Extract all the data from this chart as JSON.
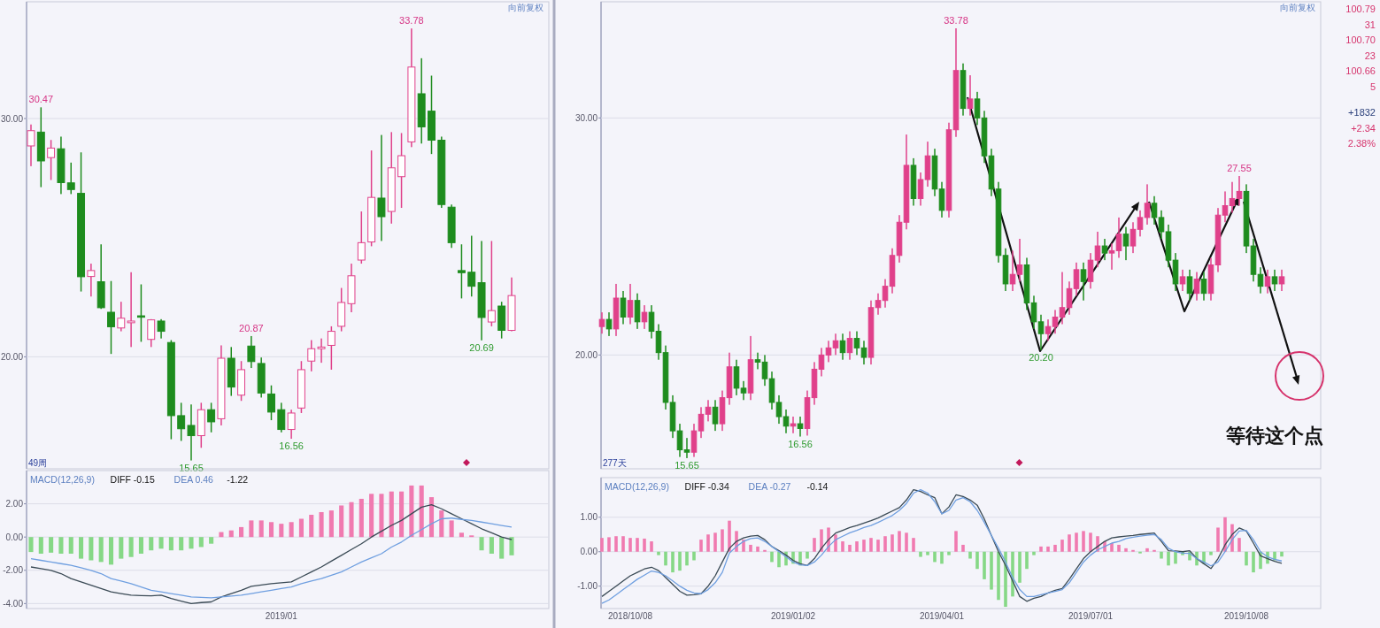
{
  "chart_data": [
    {
      "type": "candlestick",
      "ohlc": [
        [
          28.85,
          29.75,
          28.0,
          29.49
        ],
        [
          29.43,
          30.47,
          27.12,
          28.22
        ],
        [
          28.36,
          29.1,
          27.42,
          28.76
        ],
        [
          28.73,
          29.24,
          26.83,
          27.31
        ],
        [
          27.3,
          28.15,
          26.83,
          27.02
        ],
        [
          26.86,
          28.58,
          22.74,
          23.36
        ],
        [
          23.37,
          23.91,
          22.53,
          23.62
        ],
        [
          23.15,
          24.72,
          22.01,
          22.06
        ],
        [
          21.87,
          23.18,
          20.12,
          21.26
        ],
        [
          21.21,
          22.31,
          21.07,
          21.62
        ],
        [
          21.43,
          23.55,
          20.41,
          21.5
        ],
        [
          21.72,
          23.04,
          20.63,
          21.66
        ],
        [
          20.73,
          21.58,
          20.41,
          21.55
        ],
        [
          21.5,
          21.58,
          20.77,
          21.07
        ],
        [
          20.6,
          20.7,
          16.54,
          17.53
        ],
        [
          17.53,
          18.07,
          16.47,
          16.98
        ],
        [
          17.12,
          18.0,
          15.65,
          16.69
        ],
        [
          16.69,
          18.07,
          16.18,
          17.78
        ],
        [
          17.78,
          18.07,
          16.83,
          17.27
        ],
        [
          17.4,
          20.48,
          17.12,
          19.94
        ],
        [
          19.94,
          20.41,
          18.36,
          18.73
        ],
        [
          18.39,
          19.82,
          18.15,
          19.46
        ],
        [
          20.45,
          20.87,
          19.53,
          19.8
        ],
        [
          19.72,
          19.97,
          18.29,
          18.48
        ],
        [
          18.44,
          18.8,
          17.34,
          17.68
        ],
        [
          17.78,
          18.07,
          16.83,
          16.95
        ],
        [
          16.95,
          17.78,
          16.56,
          17.64
        ],
        [
          17.85,
          19.82,
          17.64,
          19.46
        ],
        [
          19.82,
          20.7,
          19.39,
          20.34
        ],
        [
          20.34,
          20.77,
          19.75,
          20.41
        ],
        [
          20.48,
          21.28,
          19.46,
          21.07
        ],
        [
          21.28,
          22.89,
          21.07,
          22.28
        ],
        [
          22.23,
          23.91,
          21.87,
          23.4
        ],
        [
          24.06,
          26.1,
          23.91,
          24.79
        ],
        [
          24.82,
          28.66,
          24.64,
          26.69
        ],
        [
          26.66,
          29.31,
          24.86,
          25.88
        ],
        [
          26.1,
          29.43,
          25.59,
          27.93
        ],
        [
          27.56,
          29.39,
          26.25,
          28.44
        ],
        [
          29.02,
          33.78,
          28.8,
          32.16
        ],
        [
          31.04,
          32.53,
          28.95,
          29.65
        ],
        [
          30.31,
          31.8,
          28.51,
          29.09
        ],
        [
          29.09,
          29.24,
          26.25,
          26.39
        ],
        [
          26.28,
          26.39,
          24.57,
          24.79
        ],
        [
          23.62,
          24.72,
          22.45,
          23.53
        ],
        [
          23.55,
          25.08,
          22.53,
          22.96
        ],
        [
          23.11,
          24.86,
          20.69,
          21.65
        ],
        [
          21.46,
          24.86,
          21.28,
          21.94
        ],
        [
          22.13,
          22.31,
          20.77,
          21.11
        ],
        [
          21.11,
          23.33,
          21.07,
          22.57
        ]
      ],
      "ylim": [
        15.3,
        34.9
      ],
      "yticks": [
        {
          "value": 20,
          "label": "20.00"
        },
        {
          "value": 30,
          "label": "30.00"
        }
      ],
      "grid": "y",
      "tick_labels": "y",
      "annotations": [
        "向前复权",
        "49周",
        {
          "text": "30.47",
          "y": 30.47
        },
        {
          "text": "33.78",
          "y": 33.78
        },
        {
          "text": "20.87",
          "y": 20.87
        },
        {
          "text": "15.65",
          "y": 15.65
        },
        {
          "text": "16.56",
          "y": 16.56
        },
        {
          "text": "20.69",
          "y": 20.69
        }
      ]
    },
    {
      "type": "bar",
      "categories": [
        null,
        null,
        null,
        null,
        null,
        null,
        null,
        null,
        null,
        null,
        null,
        null,
        null,
        null,
        null,
        null,
        null,
        null,
        null,
        null,
        null,
        null,
        null,
        null,
        null,
        "2019/01",
        null,
        null,
        null,
        null,
        null,
        null,
        null,
        null,
        null,
        null,
        null,
        null,
        null,
        null,
        null,
        null,
        null,
        null,
        null,
        null,
        null,
        null,
        null
      ],
      "series": [
        {
          "type": "bar",
          "colors": [
            "#86d886",
            "#86d886",
            "#86d886",
            "#86d886",
            "#86d886",
            "#86d886",
            "#86d886",
            "#86d886",
            "#86d886",
            "#86d886",
            "#86d886",
            "#86d886",
            "#86d886",
            "#86d886",
            "#86d886",
            "#86d886",
            "#86d886",
            "#86d886",
            "#86d886",
            "#f07ab0",
            "#f07ab0",
            "#f07ab0",
            "#f07ab0",
            "#f07ab0",
            "#f07ab0",
            "#f07ab0",
            "#f07ab0",
            "#f07ab0",
            "#f07ab0",
            "#f07ab0",
            "#f07ab0",
            "#f07ab0",
            "#f07ab0",
            "#f07ab0",
            "#f07ab0",
            "#f07ab0",
            "#f07ab0",
            "#f07ab0",
            "#f07ab0",
            "#f07ab0",
            "#f07ab0",
            "#f07ab0",
            "#f07ab0",
            "#f07ab0",
            "#f07ab0",
            "#86d886",
            "#86d886",
            "#86d886",
            "#86d886"
          ],
          "values": [
            -0.9,
            -1.0,
            -0.94,
            -1.0,
            -1.0,
            -1.3,
            -1.4,
            -1.5,
            -1.66,
            -1.3,
            -1.2,
            -1.0,
            -0.8,
            -0.7,
            -0.8,
            -0.8,
            -0.7,
            -0.6,
            -0.4,
            0.3,
            0.4,
            0.6,
            1.0,
            1.0,
            0.9,
            0.8,
            0.9,
            1.1,
            1.34,
            1.5,
            1.6,
            1.9,
            2.1,
            2.3,
            2.6,
            2.6,
            2.74,
            2.74,
            3.1,
            3.1,
            2.4,
            1.6,
            1.0,
            0.26,
            0.1,
            -0.8,
            -1.0,
            -1.3,
            -1.1
          ]
        },
        {
          "type": "line",
          "color": "#3a4a55",
          "values": [
            -1.8,
            -1.9,
            -2.0,
            -2.2,
            -2.5,
            -2.7,
            -2.9,
            -3.1,
            -3.3,
            -3.4,
            -3.5,
            -3.52,
            -3.54,
            -3.5,
            -3.7,
            -3.85,
            -4.0,
            -3.94,
            -3.9,
            -3.6,
            -3.4,
            -3.2,
            -2.96,
            -2.88,
            -2.8,
            -2.75,
            -2.7,
            -2.4,
            -2.1,
            -1.8,
            -1.45,
            -1.1,
            -0.75,
            -0.4,
            0,
            0.35,
            0.7,
            1.0,
            1.4,
            1.8,
            1.94,
            1.7,
            1.4,
            1.1,
            0.8,
            0.5,
            0.26,
            0,
            -0.15
          ]
        },
        {
          "type": "line",
          "color": "#6f9fe0",
          "values": [
            -1.3,
            -1.4,
            -1.5,
            -1.6,
            -1.7,
            -1.85,
            -2.0,
            -2.2,
            -2.5,
            -2.65,
            -2.8,
            -3.0,
            -3.2,
            -3.3,
            -3.4,
            -3.5,
            -3.6,
            -3.63,
            -3.66,
            -3.6,
            -3.55,
            -3.5,
            -3.4,
            -3.3,
            -3.2,
            -3.1,
            -3.0,
            -2.8,
            -2.65,
            -2.5,
            -2.3,
            -2.1,
            -1.8,
            -1.5,
            -1.25,
            -1.0,
            -0.6,
            -0.3,
            0.1,
            0.45,
            0.8,
            1.1,
            1.14,
            1.06,
            1.0,
            0.9,
            0.8,
            0.7,
            0.6
          ]
        }
      ],
      "ylim": [
        -4.3,
        4.0
      ],
      "yticks": [
        {
          "value": -4,
          "label": "-4.00"
        },
        {
          "value": -2,
          "label": "-2.00"
        },
        {
          "value": 0,
          "label": "0.00"
        },
        {
          "value": 2,
          "label": "2.00"
        }
      ],
      "grid": "y",
      "annotations": [
        "MACD(12,26,9)",
        "DIFF -0.15",
        "DEA 0.46",
        "-1.22"
      ]
    },
    {
      "type": "candlestick",
      "ohlc": [
        [
          21.2,
          21.8,
          20.9,
          21.5
        ],
        [
          21.5,
          21.8,
          20.8,
          21.1
        ],
        [
          21.1,
          23.0,
          20.8,
          22.4
        ],
        [
          22.4,
          22.7,
          21.3,
          21.6
        ],
        [
          21.6,
          23.0,
          21.3,
          22.3
        ],
        [
          22.3,
          22.6,
          21.1,
          21.4
        ],
        [
          21.4,
          22.1,
          21.1,
          21.8
        ],
        [
          21.8,
          22.1,
          20.7,
          21.0
        ],
        [
          21.0,
          21.3,
          19.8,
          20.1
        ],
        [
          20.1,
          20.4,
          17.7,
          18.0
        ],
        [
          18.0,
          18.3,
          16.5,
          16.8
        ],
        [
          16.8,
          17.1,
          15.7,
          16.0
        ],
        [
          16.0,
          16.5,
          15.65,
          15.9
        ],
        [
          15.9,
          17.1,
          15.7,
          16.8
        ],
        [
          16.8,
          17.8,
          16.5,
          17.5
        ],
        [
          17.5,
          18.1,
          17.2,
          17.8
        ],
        [
          17.8,
          18.1,
          16.8,
          17.1
        ],
        [
          17.1,
          18.5,
          16.8,
          18.2
        ],
        [
          18.2,
          20.1,
          17.9,
          19.5
        ],
        [
          19.5,
          19.8,
          18.3,
          18.6
        ],
        [
          18.6,
          18.9,
          18.1,
          18.4
        ],
        [
          18.4,
          20.8,
          18.1,
          19.8
        ],
        [
          19.8,
          20.1,
          19.4,
          19.7
        ],
        [
          19.7,
          20.0,
          18.7,
          19.0
        ],
        [
          19.0,
          19.3,
          17.7,
          18.0
        ],
        [
          18.0,
          18.3,
          17.1,
          17.4
        ],
        [
          17.4,
          17.7,
          16.7,
          17.0
        ],
        [
          17.0,
          17.4,
          16.7,
          17.1
        ],
        [
          17.1,
          17.4,
          16.56,
          16.9
        ],
        [
          16.9,
          18.5,
          16.6,
          18.2
        ],
        [
          18.2,
          19.7,
          17.9,
          19.4
        ],
        [
          19.4,
          20.3,
          19.1,
          20.0
        ],
        [
          20.0,
          20.6,
          19.7,
          20.3
        ],
        [
          20.3,
          20.9,
          20.0,
          20.6
        ],
        [
          20.6,
          20.9,
          19.8,
          20.1
        ],
        [
          20.1,
          21.0,
          19.8,
          20.7
        ],
        [
          20.7,
          21.0,
          20.0,
          20.3
        ],
        [
          20.3,
          20.6,
          19.6,
          19.9
        ],
        [
          19.9,
          22.3,
          19.6,
          22.0
        ],
        [
          22.0,
          22.6,
          21.7,
          22.3
        ],
        [
          22.3,
          23.2,
          22.0,
          22.9
        ],
        [
          22.9,
          24.5,
          22.6,
          24.2
        ],
        [
          24.2,
          25.9,
          23.9,
          25.6
        ],
        [
          25.6,
          29.3,
          25.3,
          28.0
        ],
        [
          28.0,
          28.3,
          26.3,
          26.6
        ],
        [
          26.6,
          27.7,
          26.3,
          27.4
        ],
        [
          27.4,
          29.0,
          27.1,
          28.4
        ],
        [
          28.4,
          28.7,
          26.7,
          27.0
        ],
        [
          27.0,
          27.3,
          25.8,
          26.1
        ],
        [
          26.1,
          29.8,
          25.8,
          29.5
        ],
        [
          29.5,
          33.78,
          29.2,
          32.0
        ],
        [
          32.0,
          32.3,
          30.1,
          30.4
        ],
        [
          30.4,
          31.8,
          30.1,
          30.8
        ],
        [
          30.8,
          31.1,
          29.7,
          30.0
        ],
        [
          30.0,
          30.3,
          28.1,
          28.4
        ],
        [
          28.4,
          28.7,
          26.7,
          27.0
        ],
        [
          27.0,
          27.3,
          23.9,
          24.2
        ],
        [
          24.2,
          24.5,
          22.7,
          23.0
        ],
        [
          23.0,
          24.4,
          22.7,
          23.4
        ],
        [
          23.4,
          24.9,
          23.1,
          23.8
        ],
        [
          23.8,
          24.1,
          21.9,
          22.2
        ],
        [
          22.2,
          22.5,
          21.1,
          21.4
        ],
        [
          21.4,
          21.7,
          20.2,
          20.9
        ],
        [
          20.9,
          21.5,
          20.6,
          21.2
        ],
        [
          21.2,
          21.9,
          20.9,
          21.6
        ],
        [
          21.6,
          23.5,
          21.3,
          22.0
        ],
        [
          22.0,
          23.1,
          21.7,
          22.8
        ],
        [
          22.8,
          23.9,
          22.5,
          23.6
        ],
        [
          23.6,
          23.9,
          22.3,
          23.1
        ],
        [
          23.1,
          24.3,
          22.8,
          24.0
        ],
        [
          24.0,
          25.2,
          23.7,
          24.6
        ],
        [
          24.6,
          24.9,
          24.0,
          24.3
        ],
        [
          24.3,
          24.7,
          23.6,
          24.4
        ],
        [
          24.4,
          25.8,
          24.1,
          25.1
        ],
        [
          25.1,
          25.4,
          24.0,
          24.6
        ],
        [
          24.6,
          25.6,
          24.3,
          25.3
        ],
        [
          25.3,
          26.1,
          25.0,
          25.8
        ],
        [
          25.8,
          27.2,
          25.5,
          26.4
        ],
        [
          26.4,
          26.7,
          25.5,
          25.8
        ],
        [
          25.8,
          26.1,
          24.9,
          25.2
        ],
        [
          25.2,
          25.5,
          23.7,
          24.0
        ],
        [
          24.0,
          24.3,
          22.7,
          23.0
        ],
        [
          23.0,
          23.6,
          22.7,
          23.3
        ],
        [
          23.3,
          23.6,
          22.3,
          22.6
        ],
        [
          22.6,
          23.5,
          22.3,
          23.2
        ],
        [
          23.2,
          23.5,
          22.3,
          22.6
        ],
        [
          22.6,
          24.1,
          22.3,
          23.8
        ],
        [
          23.8,
          26.2,
          23.5,
          25.9
        ],
        [
          25.9,
          26.9,
          25.6,
          26.3
        ],
        [
          26.3,
          27.3,
          26.0,
          26.6
        ],
        [
          26.6,
          27.55,
          26.3,
          26.9
        ],
        [
          26.9,
          27.2,
          24.3,
          24.6
        ],
        [
          24.6,
          24.9,
          23.1,
          23.4
        ],
        [
          23.4,
          23.7,
          22.6,
          22.9
        ],
        [
          22.9,
          23.6,
          22.6,
          23.3
        ],
        [
          23.3,
          23.6,
          22.7,
          23.0
        ],
        [
          23.0,
          23.6,
          22.7,
          23.3
        ]
      ],
      "ylim": [
        15.2,
        34.9
      ],
      "yticks": [
        {
          "value": 20,
          "label": "20.00"
        },
        {
          "value": 30,
          "label": "30.00"
        }
      ],
      "grid": "y",
      "tick_labels": "y",
      "annotations": [
        "向前复权",
        "277天",
        "等待这个点",
        "100.79",
        "31",
        "100.70",
        "23",
        "100.66",
        "5",
        "+1832",
        "+2.34",
        "2.38%",
        {
          "text": "33.78",
          "y": 33.78
        },
        {
          "text": "15.65",
          "y": 15.65
        },
        {
          "text": "16.56",
          "y": 16.56
        },
        {
          "text": "20.20",
          "y": 20.2
        },
        {
          "text": "27.55",
          "y": 27.55
        }
      ]
    },
    {
      "type": "bar",
      "categories": [
        null,
        null,
        null,
        null,
        "2018/10/08",
        null,
        null,
        null,
        null,
        null,
        null,
        null,
        null,
        null,
        null,
        null,
        null,
        null,
        null,
        null,
        null,
        null,
        null,
        null,
        null,
        null,
        null,
        "2019/01/02",
        null,
        null,
        null,
        null,
        null,
        null,
        null,
        null,
        null,
        null,
        null,
        null,
        null,
        null,
        null,
        null,
        null,
        null,
        null,
        null,
        "2019/04/01",
        null,
        null,
        null,
        null,
        null,
        null,
        null,
        null,
        null,
        null,
        null,
        null,
        null,
        null,
        null,
        null,
        null,
        null,
        null,
        null,
        "2019/07/01",
        null,
        null,
        null,
        null,
        null,
        null,
        null,
        null,
        null,
        null,
        null,
        null,
        null,
        null,
        null,
        null,
        null,
        null,
        null,
        null,
        null,
        "2019/10/08",
        null,
        null,
        null,
        null,
        null
      ],
      "series": [
        {
          "type": "bar",
          "colors": [
            "#f07ab0",
            "#f07ab0",
            "#f07ab0",
            "#f07ab0",
            "#f07ab0",
            "#f07ab0",
            "#f07ab0",
            "#f07ab0",
            "#86d886",
            "#86d886",
            "#86d886",
            "#86d886",
            "#86d886",
            "#86d886",
            "#f07ab0",
            "#f07ab0",
            "#f07ab0",
            "#f07ab0",
            "#f07ab0",
            "#f07ab0",
            "#f07ab0",
            "#f07ab0",
            "#f07ab0",
            "#f07ab0",
            "#86d886",
            "#86d886",
            "#86d886",
            "#86d886",
            "#86d886",
            "#86d886",
            "#f07ab0",
            "#f07ab0",
            "#f07ab0",
            "#f07ab0",
            "#f07ab0",
            "#f07ab0",
            "#f07ab0",
            "#f07ab0",
            "#f07ab0",
            "#f07ab0",
            "#f07ab0",
            "#f07ab0",
            "#f07ab0",
            "#f07ab0",
            "#f07ab0",
            "#86d886",
            "#86d886",
            "#86d886",
            "#86d886",
            "#86d886",
            "#f07ab0",
            "#f07ab0",
            "#86d886",
            "#86d886",
            "#86d886",
            "#86d886",
            "#86d886",
            "#86d886",
            "#86d886",
            "#86d886",
            "#86d886",
            "#86d886",
            "#f07ab0",
            "#f07ab0",
            "#f07ab0",
            "#f07ab0",
            "#f07ab0",
            "#f07ab0",
            "#f07ab0",
            "#f07ab0",
            "#f07ab0",
            "#f07ab0",
            "#f07ab0",
            "#f07ab0",
            "#f07ab0",
            "#f07ab0",
            "#86d886",
            "#f07ab0",
            "#f07ab0",
            "#86d886",
            "#86d886",
            "#86d886",
            "#86d886",
            "#86d886",
            "#86d886",
            "#86d886",
            "#86d886",
            "#f07ab0",
            "#f07ab0",
            "#f07ab0",
            "#f07ab0",
            "#86d886",
            "#86d886",
            "#86d886",
            "#86d886",
            "#86d886",
            "#86d886"
          ],
          "values": [
            0.4,
            0.42,
            0.45,
            0.45,
            0.4,
            0.4,
            0.38,
            0.3,
            -0.1,
            -0.4,
            -0.6,
            -0.55,
            -0.4,
            -0.25,
            0.35,
            0.5,
            0.55,
            0.65,
            0.9,
            0.6,
            0.35,
            0.2,
            0.15,
            0.05,
            -0.3,
            -0.45,
            -0.4,
            -0.35,
            -0.4,
            -0.2,
            0.4,
            0.65,
            0.7,
            0.5,
            0.3,
            0.2,
            0.3,
            0.35,
            0.4,
            0.35,
            0.45,
            0.5,
            0.6,
            0.55,
            0.4,
            -0.15,
            -0.1,
            -0.3,
            -0.35,
            -0.1,
            0.6,
            0.2,
            -0.2,
            -0.5,
            -0.8,
            -1.1,
            -1.4,
            -1.6,
            -1.3,
            -0.9,
            -0.5,
            -0.1,
            0.15,
            0.15,
            0.2,
            0.35,
            0.5,
            0.55,
            0.6,
            0.55,
            0.45,
            0.3,
            0.25,
            0.2,
            0.1,
            0.05,
            -0.05,
            0.1,
            0.05,
            -0.2,
            -0.4,
            -0.35,
            -0.1,
            -0.25,
            -0.4,
            -0.35,
            -0.1,
            0.7,
            1.0,
            0.8,
            0.4,
            -0.4,
            -0.6,
            -0.5,
            -0.35,
            -0.25,
            -0.14
          ]
        },
        {
          "type": "line",
          "color": "#3a4a55",
          "values": [
            -1.3,
            -1.15,
            -1.0,
            -0.85,
            -0.7,
            -0.6,
            -0.5,
            -0.45,
            -0.55,
            -0.75,
            -0.95,
            -1.15,
            -1.26,
            -1.25,
            -1.22,
            -1.0,
            -0.7,
            -0.3,
            0.1,
            0.3,
            0.4,
            0.45,
            0.47,
            0.35,
            0.15,
            0.03,
            -0.1,
            -0.25,
            -0.35,
            -0.4,
            -0.2,
            0.1,
            0.35,
            0.54,
            0.62,
            0.7,
            0.76,
            0.83,
            0.9,
            0.98,
            1.08,
            1.18,
            1.28,
            1.5,
            1.8,
            1.75,
            1.65,
            1.57,
            1.1,
            1.3,
            1.65,
            1.6,
            1.5,
            1.35,
            0.95,
            0.47,
            0.0,
            -0.4,
            -0.85,
            -1.3,
            -1.44,
            -1.35,
            -1.3,
            -1.2,
            -1.12,
            -1.07,
            -0.8,
            -0.5,
            -0.2,
            0.0,
            0.15,
            0.3,
            0.4,
            0.43,
            0.45,
            0.47,
            0.5,
            0.52,
            0.54,
            0.3,
            0.03,
            0.02,
            0.0,
            0.03,
            -0.2,
            -0.35,
            -0.49,
            -0.2,
            0.2,
            0.5,
            0.69,
            0.6,
            0.25,
            -0.12,
            -0.2,
            -0.28,
            -0.34
          ]
        },
        {
          "type": "line",
          "color": "#6f9fe0",
          "values": [
            -1.5,
            -1.4,
            -1.25,
            -1.1,
            -0.95,
            -0.8,
            -0.68,
            -0.56,
            -0.6,
            -0.7,
            -0.85,
            -1.0,
            -1.12,
            -1.2,
            -1.22,
            -1.1,
            -0.9,
            -0.6,
            -0.04,
            0.15,
            0.3,
            0.38,
            0.4,
            0.3,
            0.15,
            0.0,
            -0.15,
            -0.3,
            -0.38,
            -0.4,
            -0.3,
            -0.1,
            0.15,
            0.35,
            0.45,
            0.55,
            0.62,
            0.7,
            0.76,
            0.85,
            0.95,
            1.05,
            1.2,
            1.4,
            1.7,
            1.8,
            1.7,
            1.45,
            1.1,
            1.2,
            1.5,
            1.57,
            1.45,
            1.2,
            0.85,
            0.47,
            0.1,
            -0.3,
            -0.75,
            -1.1,
            -1.3,
            -1.3,
            -1.25,
            -1.2,
            -1.15,
            -1.1,
            -0.9,
            -0.6,
            -0.3,
            -0.1,
            0.05,
            0.15,
            0.25,
            0.3,
            0.38,
            0.42,
            0.45,
            0.48,
            0.5,
            0.35,
            0.1,
            0.0,
            -0.04,
            -0.05,
            -0.2,
            -0.3,
            -0.41,
            -0.3,
            0.0,
            0.35,
            0.6,
            0.62,
            0.35,
            0.0,
            -0.15,
            -0.22,
            -0.27
          ]
        }
      ],
      "ylim": [
        -1.65,
        2.15
      ],
      "yticks": [
        {
          "value": -1,
          "label": "-1.00"
        },
        {
          "value": 0,
          "label": "0.00"
        },
        {
          "value": 1,
          "label": "1.00"
        }
      ],
      "grid": "y",
      "annotations": [
        "MACD(12,26,9)",
        "DIFF -0.34",
        "DEA -0.27",
        "-0.14"
      ]
    }
  ]
}
